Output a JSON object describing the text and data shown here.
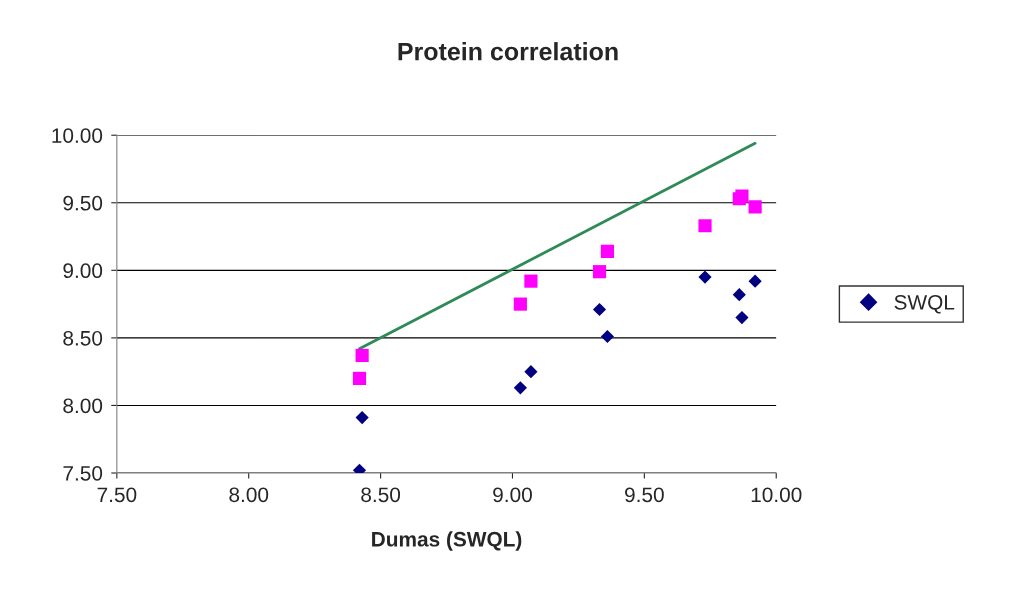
{
  "chart_data": {
    "type": "scatter",
    "title": "Protein correlation",
    "xlabel": "Dumas (SWQL)",
    "xlim": [
      7.5,
      10.0
    ],
    "ylim": [
      7.5,
      10.0
    ],
    "xticks": [
      {
        "value": 7.5,
        "label": "7.50"
      },
      {
        "value": 8.0,
        "label": "8.00"
      },
      {
        "value": 8.5,
        "label": "8.50"
      },
      {
        "value": 9.0,
        "label": "9.00"
      },
      {
        "value": 9.5,
        "label": "9.50"
      },
      {
        "value": 10.0,
        "label": "10.00"
      }
    ],
    "yticks": [
      {
        "value": 7.5,
        "label": "7.50"
      },
      {
        "value": 8.0,
        "label": "8.00"
      },
      {
        "value": 8.5,
        "label": "8.50"
      },
      {
        "value": 9.0,
        "label": "9.00"
      },
      {
        "value": 9.5,
        "label": "9.50"
      },
      {
        "value": 10.0,
        "label": "10.00"
      }
    ],
    "grid": "y",
    "legend": "right",
    "series": [
      {
        "name": "SWQL",
        "marker": "diamond",
        "color": "#000080",
        "x": [
          8.42,
          8.43,
          9.03,
          9.07,
          9.33,
          9.36,
          9.73,
          9.86,
          9.87,
          9.92
        ],
        "values": [
          7.52,
          7.91,
          8.13,
          8.25,
          8.71,
          8.51,
          8.95,
          8.82,
          8.65,
          8.92
        ]
      },
      {
        "marker": "square",
        "color": "#ff00ff",
        "x": [
          8.42,
          8.43,
          9.03,
          9.07,
          9.33,
          9.36,
          9.73,
          9.86,
          9.87,
          9.92
        ],
        "values": [
          8.2,
          8.37,
          8.75,
          8.92,
          8.99,
          9.14,
          9.33,
          9.53,
          9.55,
          9.47
        ]
      },
      {
        "type": "line",
        "marker": "none",
        "color": "#2e8b57",
        "x": [
          8.42,
          9.92
        ],
        "values": [
          8.42,
          9.94
        ]
      }
    ]
  }
}
